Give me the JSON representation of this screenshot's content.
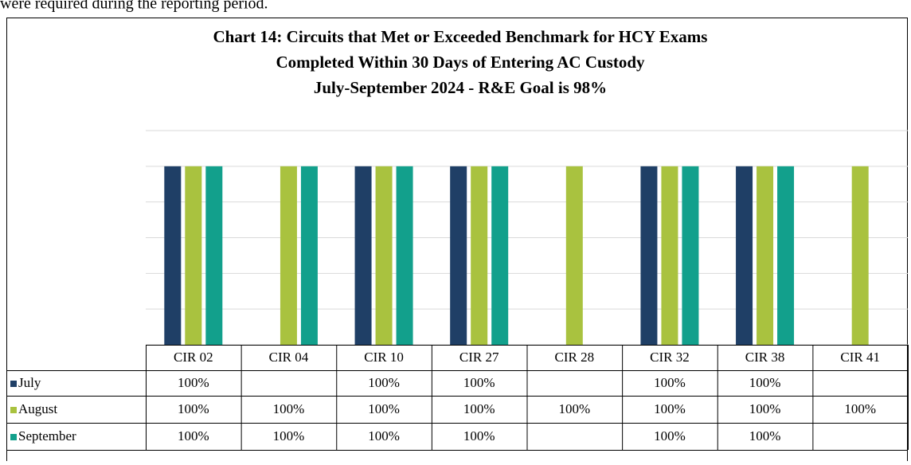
{
  "intro_text": "were required during the reporting period.",
  "chart_data": {
    "type": "bar",
    "title": [
      "Chart 14: Circuits that Met or Exceeded Benchmark for HCY Exams",
      "Completed Within 30 Days of Entering AC Custody",
      "July-September 2024 - R&E Goal is 98%"
    ],
    "categories": [
      "CIR 02",
      "CIR 04",
      "CIR 10",
      "CIR 27",
      "CIR 28",
      "CIR 32",
      "CIR 38",
      "CIR 41"
    ],
    "series": [
      {
        "name": "July",
        "color": "#1f3f66",
        "values": [
          100,
          null,
          100,
          100,
          null,
          100,
          100,
          null
        ],
        "value_labels": [
          "100%",
          null,
          "100%",
          "100%",
          null,
          "100%",
          "100%",
          null
        ]
      },
      {
        "name": "August",
        "color": "#a9c23f",
        "values": [
          100,
          100,
          100,
          100,
          100,
          100,
          100,
          100
        ],
        "value_labels": [
          "100%",
          "100%",
          "100%",
          "100%",
          "100%",
          "100%",
          "100%",
          "100%"
        ]
      },
      {
        "name": "September",
        "color": "#12a08c",
        "values": [
          100,
          100,
          100,
          100,
          null,
          100,
          100,
          null
        ],
        "value_labels": [
          "100%",
          "100%",
          "100%",
          "100%",
          null,
          "100%",
          "100%",
          null
        ]
      }
    ],
    "ylim": [
      0,
      120
    ],
    "yticks": [
      0,
      20,
      40,
      60,
      80,
      100,
      120
    ],
    "grid": true
  }
}
